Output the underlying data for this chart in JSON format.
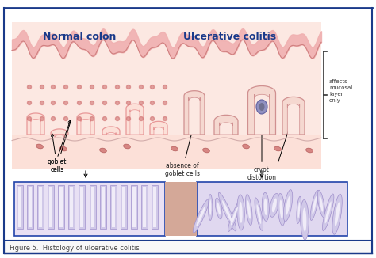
{
  "figure_title": "Figure 5.  Histology of ulcerative colitis",
  "title_left": "Normal colon",
  "title_right": "Ulcerative colitis",
  "bg_color": "#ffffff",
  "border_color": "#1a3a8a",
  "caption_color": "#444444",
  "title_color": "#1a3a8a",
  "fig_w": 4.74,
  "fig_h": 3.26,
  "dpi": 100,
  "illus_bg": "#fce8e2",
  "mucosa_color": "#f5c8be",
  "villus_outer": "#e89898",
  "villus_fill": "#fce0d8",
  "submucosa_color": "#fdf0ec",
  "layer_line_color": "#d4a0a0",
  "micro_bg_left": "#e8e0f4",
  "micro_bg_right": "#e0d8f0",
  "micro_border": "#2244aa",
  "crypt_color": "#a090cc",
  "crypt_fill": "#d0c8e8",
  "top_pink": "#f0a8a0",
  "annot_color": "#222222",
  "bracket_color": "#444444"
}
